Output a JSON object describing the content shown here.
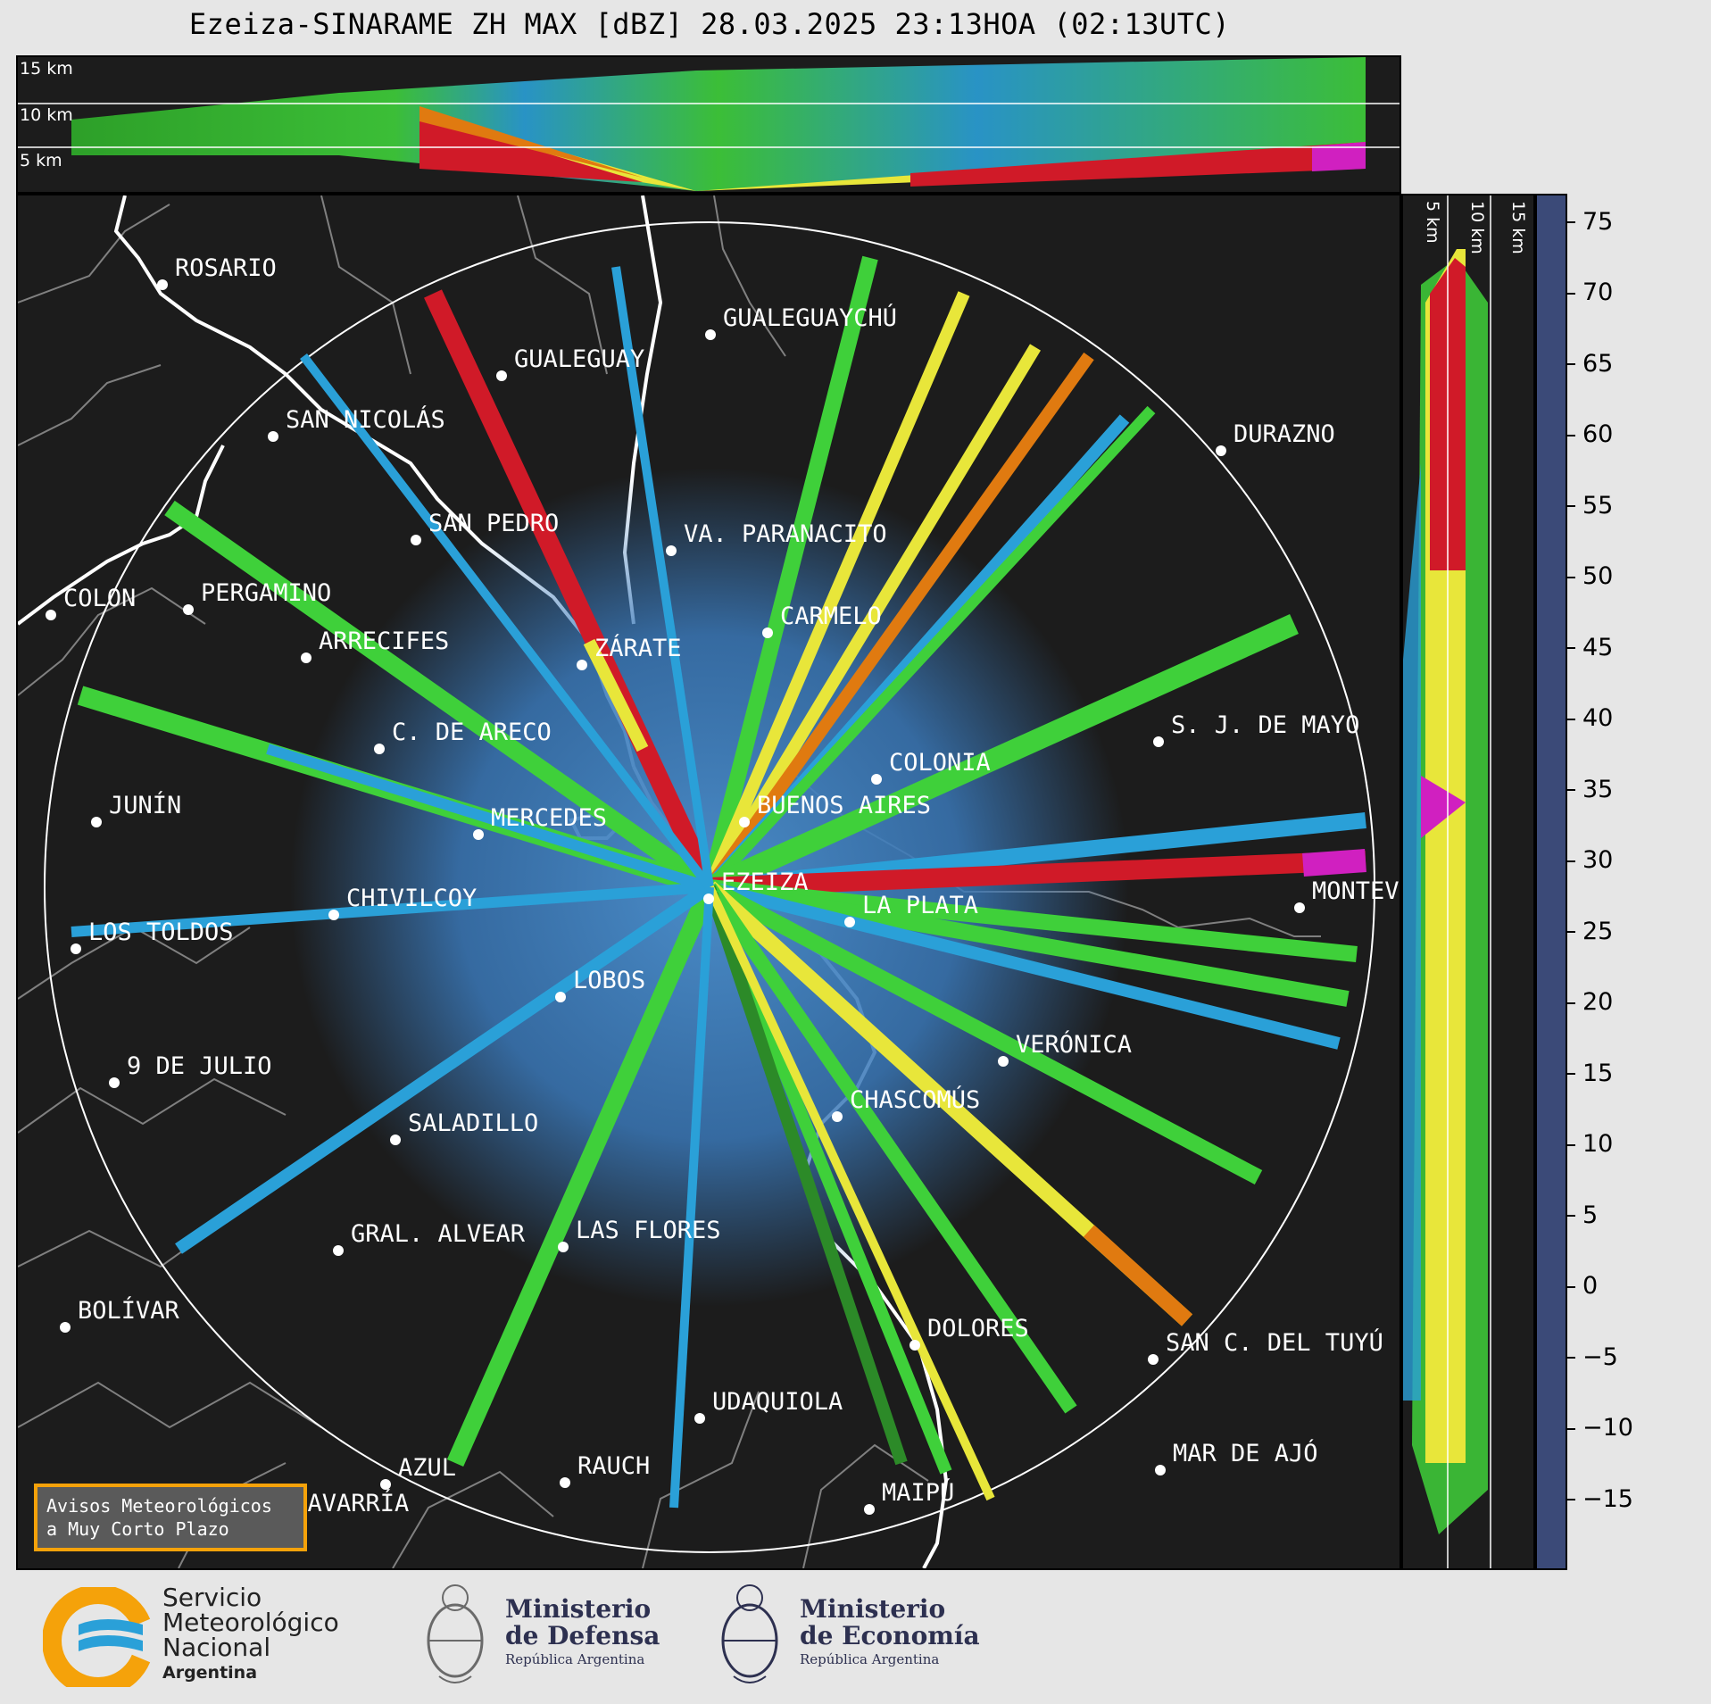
{
  "title": "Ezeiza-SINARAME ZH MAX [dBZ] 28.03.2025 23:13HOA (02:13UTC)",
  "height_labels": [
    "15 km",
    "10 km",
    "5 km"
  ],
  "cities": [
    {
      "name": "ROSARIO"
    },
    {
      "name": "GUALEGUAYCHÚ"
    },
    {
      "name": "GUALEGUAY"
    },
    {
      "name": "SAN NICOLÁS"
    },
    {
      "name": "DURAZNO"
    },
    {
      "name": "SAN PEDRO"
    },
    {
      "name": "VA. PARANACITO"
    },
    {
      "name": "COLON"
    },
    {
      "name": "PERGAMINO"
    },
    {
      "name": "CARMELO"
    },
    {
      "name": "ARRECIFES"
    },
    {
      "name": "ZÁRATE"
    },
    {
      "name": "S. J. DE MAYO"
    },
    {
      "name": "C. DE ARECO"
    },
    {
      "name": "COLONIA"
    },
    {
      "name": "JUNÍN"
    },
    {
      "name": "BUENOS AIRES"
    },
    {
      "name": "MERCEDES"
    },
    {
      "name": "EZEIZA"
    },
    {
      "name": "MONTEVIDEO"
    },
    {
      "name": "CHIVILCOY"
    },
    {
      "name": "LA PLATA"
    },
    {
      "name": "LOS TOLDOS"
    },
    {
      "name": "LOBOS"
    },
    {
      "name": "VERÓNICA"
    },
    {
      "name": "9 DE JULIO"
    },
    {
      "name": "CHASCOMÚS"
    },
    {
      "name": "SALADILLO"
    },
    {
      "name": "GRAL. ALVEAR"
    },
    {
      "name": "LAS FLORES"
    },
    {
      "name": "BOLÍVAR"
    },
    {
      "name": "DOLORES"
    },
    {
      "name": "SAN C. DEL TUYÚ"
    },
    {
      "name": "UDAQUIOLA"
    },
    {
      "name": "MAR DE AJÓ"
    },
    {
      "name": "AZUL"
    },
    {
      "name": "RAUCH"
    },
    {
      "name": "OLAVARRÍA"
    },
    {
      "name": "MAIPÚ"
    }
  ],
  "colorbar": {
    "ticks": [
      "75",
      "70",
      "65",
      "60",
      "55",
      "50",
      "45",
      "40",
      "35",
      "30",
      "25",
      "20",
      "15",
      "10",
      "5",
      "0",
      "−5",
      "−10",
      "−15"
    ],
    "range": [
      -20,
      77
    ],
    "stops": [
      {
        "from": -20,
        "to": 17,
        "color": "#3b4a78"
      },
      {
        "from": 17,
        "to": 30,
        "color": "#2aa0d8"
      },
      {
        "from": 30,
        "to": 40,
        "color": "#e8e63a"
      },
      {
        "from": 40,
        "to": 42,
        "color": "#e07a10"
      },
      {
        "from": 42,
        "to": 50,
        "color": "#d01a28"
      },
      {
        "from": 50,
        "to": 59,
        "color": "#d020c0"
      },
      {
        "from": 59,
        "to": 60,
        "color": "#ffffff"
      },
      {
        "from": 60,
        "to": 77,
        "color": "#86e0c0"
      }
    ]
  },
  "avisos": {
    "line1": "Avisos Meteorológicos",
    "line2": "a Muy Corto Plazo"
  },
  "footer": {
    "smn": {
      "line1": "Servicio",
      "line2": "Meteorológico",
      "line3": "Nacional",
      "line4": "Argentina"
    },
    "defensa": {
      "line1": "Ministerio",
      "line2": "de Defensa",
      "line3": "República Argentina"
    },
    "economia": {
      "line1": "Ministerio",
      "line2": "de Economía",
      "line3": "República Argentina"
    }
  },
  "colors": {
    "background": "#1c1c1c",
    "page": "#e6e6e6",
    "smn_orange": "#f5a20a",
    "smn_blue": "#2aa0d8",
    "ministry": "#2d3050"
  }
}
